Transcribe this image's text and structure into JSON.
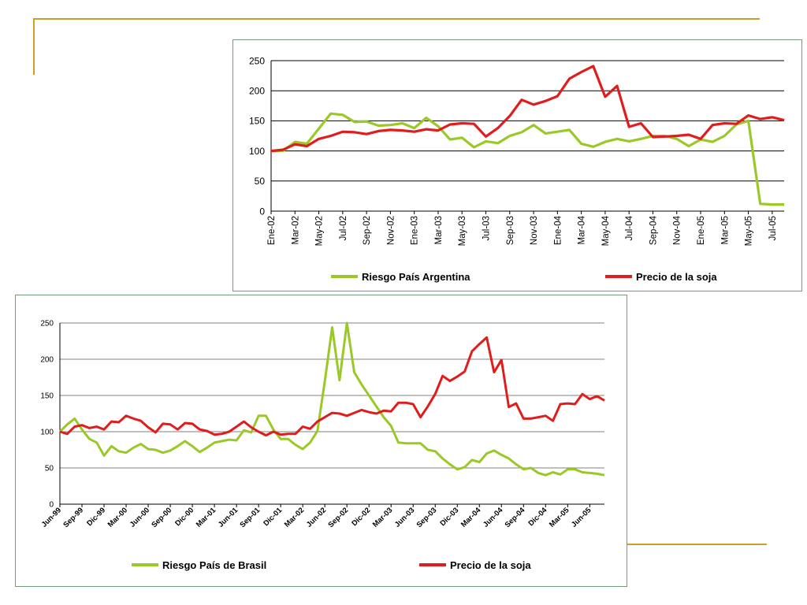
{
  "theme": {
    "green": "#9ac927",
    "red": "#e01c1c",
    "deco": "#c9a12a",
    "grid": "#000000"
  },
  "chart_data": [
    {
      "type": "line",
      "title": "",
      "xlabel": "",
      "ylabel": "",
      "ylim": [
        0,
        250
      ],
      "yticks": [
        0,
        50,
        100,
        150,
        200,
        250
      ],
      "grid": "horizontal",
      "legend_position": "bottom",
      "x_tick_labels": [
        "Ene-02",
        "Mar-02",
        "May-02",
        "Jul-02",
        "Sep-02",
        "Nov-02",
        "Ene-03",
        "Mar-03",
        "May-03",
        "Jul-03",
        "Sep-03",
        "Nov-03",
        "Ene-04",
        "Mar-04",
        "May-04",
        "Jul-04",
        "Sep-04",
        "Nov-04",
        "Ene-05",
        "Mar-05",
        "May-05",
        "Jul-05"
      ],
      "series": [
        {
          "name": "Riesgo País Argentina",
          "color": "#9ac927",
          "values": [
            100,
            100,
            115,
            112,
            137,
            162,
            160,
            148,
            149,
            142,
            143,
            146,
            138,
            155,
            141,
            119,
            122,
            106,
            116,
            113,
            125,
            131,
            143,
            129,
            132,
            135,
            112,
            107,
            115,
            120,
            116,
            120,
            125,
            125,
            120,
            108,
            119,
            115,
            125,
            144,
            150,
            12,
            11,
            11
          ]
        },
        {
          "name": "Precio de la soja",
          "color": "#e01c1c",
          "values": [
            100,
            102,
            111,
            108,
            120,
            125,
            132,
            131,
            128,
            133,
            135,
            134,
            132,
            136,
            134,
            144,
            146,
            145,
            124,
            138,
            158,
            185,
            177,
            183,
            191,
            220,
            231,
            241,
            190,
            208,
            140,
            146,
            123,
            124,
            125,
            127,
            120,
            143,
            146,
            145,
            159,
            153,
            156,
            151
          ]
        }
      ]
    },
    {
      "type": "line",
      "title": "",
      "xlabel": "",
      "ylabel": "",
      "ylim": [
        0,
        250
      ],
      "yticks": [
        0,
        50,
        100,
        150,
        200,
        250
      ],
      "grid": "horizontal",
      "legend_position": "bottom",
      "x_tick_labels": [
        "Jun-99",
        "Sep-99",
        "Dic-99",
        "Mar-00",
        "Jun-00",
        "Sep-00",
        "Dic-00",
        "Mar-01",
        "Jun-01",
        "Sep-01",
        "Dic-01",
        "Mar-02",
        "Jun-02",
        "Sep-02",
        "Dic-02",
        "Mar-03",
        "Jun-03",
        "Sep-03",
        "Dic-03",
        "Mar-04",
        "Jun-04",
        "Sep-04",
        "Dic-04",
        "Mar-05",
        "Jun-05"
      ],
      "series": [
        {
          "name": "Riesgo País de Brasil",
          "color": "#9ac927",
          "values": [
            100,
            110,
            118,
            103,
            90,
            85,
            67,
            80,
            73,
            71,
            78,
            83,
            76,
            75,
            71,
            74,
            80,
            87,
            80,
            72,
            78,
            85,
            87,
            89,
            88,
            102,
            99,
            122,
            122,
            103,
            90,
            90,
            82,
            76,
            85,
            101,
            170,
            244,
            171,
            250,
            182,
            165,
            150,
            135,
            120,
            108,
            85,
            84,
            84,
            84,
            75,
            73,
            63,
            55,
            48,
            51,
            61,
            58,
            70,
            74,
            68,
            63,
            55,
            48,
            50,
            43,
            40,
            44,
            41,
            48,
            48,
            44,
            43,
            42,
            40
          ]
        },
        {
          "name": "Precio de la soja",
          "color": "#e01c1c",
          "values": [
            100,
            97,
            107,
            109,
            105,
            107,
            103,
            114,
            113,
            122,
            118,
            115,
            106,
            99,
            111,
            110,
            103,
            112,
            111,
            103,
            101,
            96,
            97,
            100,
            107,
            114,
            106,
            100,
            95,
            100,
            96,
            97,
            97,
            107,
            104,
            114,
            120,
            126,
            125,
            122,
            126,
            130,
            127,
            125,
            129,
            128,
            140,
            140,
            138,
            120,
            135,
            152,
            177,
            170,
            176,
            183,
            211,
            221,
            230,
            182,
            199,
            134,
            139,
            118,
            118,
            120,
            122,
            115,
            138,
            139,
            138,
            152,
            145,
            149,
            143
          ]
        }
      ]
    }
  ]
}
